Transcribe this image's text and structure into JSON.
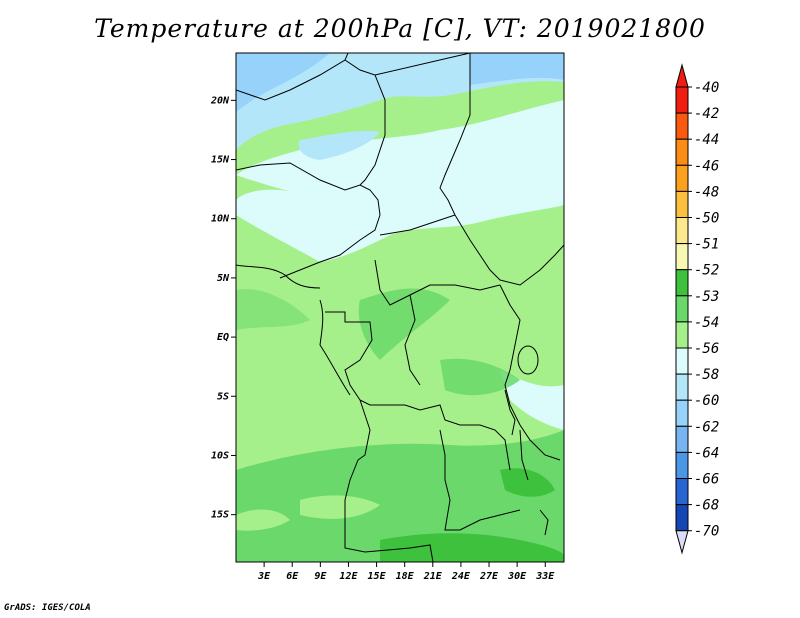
{
  "title": "Temperature at 200hPa [C], VT: 2019021800",
  "credit": "GrADS: IGES/COLA",
  "map": {
    "lat_labels": [
      "20N",
      "15N",
      "10N",
      "5N",
      "EQ",
      "5S",
      "10S",
      "15S"
    ],
    "lon_labels": [
      "3E",
      "6E",
      "9E",
      "12E",
      "15E",
      "18E",
      "21E",
      "24E",
      "27E",
      "30E",
      "33E"
    ],
    "lat_range": [
      -19,
      24
    ],
    "lon_range": [
      0,
      35
    ]
  },
  "colorbar": {
    "labels": [
      "-40",
      "-42",
      "-44",
      "-46",
      "-48",
      "-50",
      "-51",
      "-52",
      "-53",
      "-54",
      "-56",
      "-58",
      "-60",
      "-62",
      "-64",
      "-66",
      "-68",
      "-70"
    ],
    "colors": {
      "-40": "#f01e10",
      "-42": "#fa5a10",
      "-44": "#fb8c14",
      "-46": "#fca01e",
      "-48": "#fcc040",
      "-50": "#fde88c",
      "-51": "#f8f8b4",
      "-52": "#3ec23e",
      "-53": "#6ad86a",
      "-54": "#a6f08c",
      "-56": "#dcfcfc",
      "-58": "#b4e6fa",
      "-60": "#96d2fa",
      "-62": "#78b4f0",
      "-64": "#4c96e6",
      "-66": "#2864d2",
      "-68": "#1446b4",
      "-70": "#0a2878",
      "below": "#dcdcf8"
    }
  }
}
